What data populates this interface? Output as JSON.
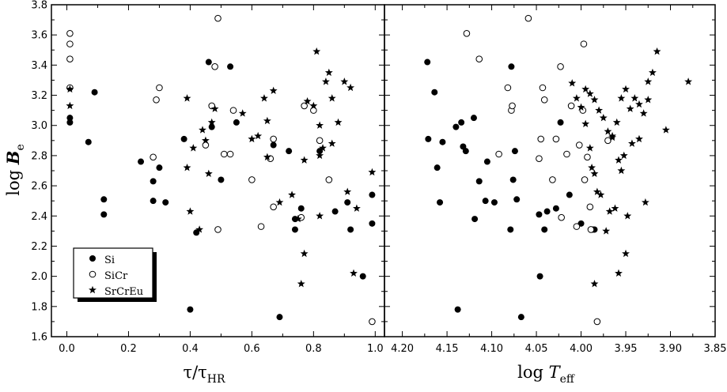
{
  "chart_data": [
    {
      "type": "scatter",
      "xlabel": "τ/τ",
      "xlabel_sub": "HR",
      "ylabel": "log ",
      "ylabel_italic": "B",
      "ylabel_sub": "e",
      "xlim": [
        -0.05,
        1.03
      ],
      "ylim": [
        1.6,
        3.8
      ],
      "xticks": [
        "0.0",
        "0.2",
        "0.4",
        "0.6",
        "0.8",
        "1.0"
      ],
      "yticks": [
        "1.6",
        "1.8",
        "2.0",
        "2.2",
        "2.4",
        "2.6",
        "2.8",
        "3.0",
        "3.2",
        "3.4",
        "3.6",
        "3.8"
      ],
      "legend": {
        "position": "bottom-left",
        "entries": [
          "Si",
          "SiCr",
          "SrCrEu"
        ]
      },
      "series": [
        {
          "name": "Si",
          "marker": "filled-circle",
          "points": [
            [
              0.01,
              3.02
            ],
            [
              0.01,
              3.05
            ],
            [
              0.07,
              2.89
            ],
            [
              0.09,
              3.22
            ],
            [
              0.12,
              2.51
            ],
            [
              0.12,
              2.41
            ],
            [
              0.24,
              2.76
            ],
            [
              0.28,
              2.63
            ],
            [
              0.28,
              2.5
            ],
            [
              0.3,
              2.72
            ],
            [
              0.32,
              2.49
            ],
            [
              0.38,
              2.91
            ],
            [
              0.4,
              1.78
            ],
            [
              0.42,
              2.29
            ],
            [
              0.46,
              3.42
            ],
            [
              0.47,
              2.99
            ],
            [
              0.5,
              2.64
            ],
            [
              0.53,
              3.39
            ],
            [
              0.55,
              3.02
            ],
            [
              0.67,
              2.87
            ],
            [
              0.69,
              1.73
            ],
            [
              0.72,
              2.83
            ],
            [
              0.74,
              2.38
            ],
            [
              0.74,
              2.31
            ],
            [
              0.76,
              2.45
            ],
            [
              0.82,
              2.83
            ],
            [
              0.87,
              2.43
            ],
            [
              0.91,
              2.49
            ],
            [
              0.92,
              2.31
            ],
            [
              0.96,
              2.0
            ],
            [
              0.99,
              2.35
            ],
            [
              0.99,
              2.54
            ]
          ]
        },
        {
          "name": "SiCr",
          "marker": "open-circle",
          "points": [
            [
              0.01,
              3.61
            ],
            [
              0.01,
              3.54
            ],
            [
              0.01,
              3.44
            ],
            [
              0.01,
              3.25
            ],
            [
              0.28,
              2.79
            ],
            [
              0.29,
              3.17
            ],
            [
              0.3,
              3.25
            ],
            [
              0.45,
              2.87
            ],
            [
              0.47,
              3.13
            ],
            [
              0.48,
              3.39
            ],
            [
              0.49,
              3.71
            ],
            [
              0.49,
              2.31
            ],
            [
              0.51,
              2.81
            ],
            [
              0.53,
              2.81
            ],
            [
              0.54,
              3.1
            ],
            [
              0.6,
              2.64
            ],
            [
              0.63,
              2.33
            ],
            [
              0.66,
              2.78
            ],
            [
              0.67,
              2.46
            ],
            [
              0.67,
              2.91
            ],
            [
              0.76,
              2.39
            ],
            [
              0.77,
              3.13
            ],
            [
              0.8,
              3.1
            ],
            [
              0.82,
              2.9
            ],
            [
              0.85,
              2.64
            ],
            [
              0.99,
              1.7
            ]
          ]
        },
        {
          "name": "SrCrEu",
          "marker": "star",
          "points": [
            [
              0.01,
              3.13
            ],
            [
              0.01,
              3.24
            ],
            [
              0.39,
              3.18
            ],
            [
              0.39,
              2.72
            ],
            [
              0.4,
              2.43
            ],
            [
              0.41,
              2.85
            ],
            [
              0.43,
              2.31
            ],
            [
              0.44,
              2.97
            ],
            [
              0.45,
              2.9
            ],
            [
              0.46,
              2.68
            ],
            [
              0.47,
              3.02
            ],
            [
              0.48,
              3.11
            ],
            [
              0.57,
              3.08
            ],
            [
              0.6,
              2.91
            ],
            [
              0.62,
              2.93
            ],
            [
              0.64,
              3.18
            ],
            [
              0.65,
              3.03
            ],
            [
              0.65,
              2.79
            ],
            [
              0.67,
              3.23
            ],
            [
              0.69,
              2.49
            ],
            [
              0.73,
              2.54
            ],
            [
              0.75,
              2.38
            ],
            [
              0.76,
              1.95
            ],
            [
              0.77,
              2.15
            ],
            [
              0.77,
              2.77
            ],
            [
              0.78,
              3.16
            ],
            [
              0.8,
              3.13
            ],
            [
              0.81,
              3.49
            ],
            [
              0.82,
              3.0
            ],
            [
              0.82,
              2.8
            ],
            [
              0.82,
              2.4
            ],
            [
              0.83,
              2.85
            ],
            [
              0.84,
              3.29
            ],
            [
              0.85,
              3.35
            ],
            [
              0.86,
              2.88
            ],
            [
              0.86,
              3.18
            ],
            [
              0.88,
              3.02
            ],
            [
              0.9,
              3.29
            ],
            [
              0.91,
              2.56
            ],
            [
              0.92,
              3.25
            ],
            [
              0.93,
              2.02
            ],
            [
              0.94,
              2.45
            ],
            [
              0.99,
              2.69
            ]
          ]
        }
      ]
    },
    {
      "type": "scatter",
      "xlabel": "log ",
      "xlabel_italic": "T",
      "xlabel_sub": "eff",
      "xlim": [
        4.22,
        3.85
      ],
      "ylim": [
        1.6,
        3.8
      ],
      "xticks": [
        "4.20",
        "4.15",
        "4.10",
        "4.05",
        "4.00",
        "3.95",
        "3.90",
        "3.85"
      ],
      "series": [
        {
          "name": "Si",
          "marker": "filled-circle",
          "points": [
            [
              4.172,
              3.42
            ],
            [
              4.171,
              2.91
            ],
            [
              4.164,
              3.22
            ],
            [
              4.161,
              2.72
            ],
            [
              4.158,
              2.49
            ],
            [
              4.155,
              2.89
            ],
            [
              4.14,
              2.99
            ],
            [
              4.134,
              3.02
            ],
            [
              4.132,
              2.86
            ],
            [
              4.129,
              2.83
            ],
            [
              4.12,
              3.05
            ],
            [
              4.119,
              2.38
            ],
            [
              4.114,
              2.63
            ],
            [
              4.107,
              2.5
            ],
            [
              4.105,
              2.76
            ],
            [
              4.097,
              2.49
            ],
            [
              4.079,
              2.31
            ],
            [
              4.078,
              3.39
            ],
            [
              4.076,
              2.64
            ],
            [
              4.074,
              2.83
            ],
            [
              4.072,
              2.51
            ],
            [
              4.067,
              1.73
            ],
            [
              4.047,
              2.41
            ],
            [
              4.046,
              2.0
            ],
            [
              4.041,
              2.31
            ],
            [
              4.038,
              2.43
            ],
            [
              4.028,
              2.45
            ],
            [
              4.023,
              3.02
            ],
            [
              4.013,
              2.54
            ],
            [
              4.0,
              2.35
            ],
            [
              3.987,
              2.31
            ],
            [
              3.985,
              2.31
            ],
            [
              4.138,
              1.78
            ]
          ]
        },
        {
          "name": "SiCr",
          "marker": "open-circle",
          "points": [
            [
              4.128,
              3.61
            ],
            [
              4.114,
              3.44
            ],
            [
              4.092,
              2.81
            ],
            [
              4.082,
              3.25
            ],
            [
              4.078,
              3.1
            ],
            [
              4.077,
              3.13
            ],
            [
              4.059,
              3.71
            ],
            [
              4.047,
              2.78
            ],
            [
              4.045,
              2.91
            ],
            [
              4.043,
              3.25
            ],
            [
              4.041,
              3.17
            ],
            [
              4.032,
              2.64
            ],
            [
              4.028,
              2.91
            ],
            [
              4.023,
              3.39
            ],
            [
              4.022,
              2.39
            ],
            [
              4.016,
              2.81
            ],
            [
              4.011,
              3.13
            ],
            [
              4.005,
              2.33
            ],
            [
              4.002,
              2.87
            ],
            [
              3.998,
              3.1
            ],
            [
              3.997,
              3.54
            ],
            [
              3.996,
              2.64
            ],
            [
              3.993,
              2.79
            ],
            [
              3.99,
              2.46
            ],
            [
              3.989,
              2.31
            ],
            [
              3.982,
              1.7
            ],
            [
              3.97,
              2.9
            ]
          ]
        },
        {
          "name": "SrCrEu",
          "marker": "star",
          "points": [
            [
              3.995,
              3.24
            ],
            [
              3.99,
              3.21
            ],
            [
              3.985,
              3.17
            ],
            [
              3.98,
              3.1
            ],
            [
              3.975,
              3.05
            ],
            [
              3.97,
              2.96
            ],
            [
              3.965,
              2.93
            ],
            [
              3.96,
              3.02
            ],
            [
              3.955,
              3.18
            ],
            [
              3.95,
              3.24
            ],
            [
              3.945,
              3.11
            ],
            [
              3.94,
              3.18
            ],
            [
              3.935,
              3.14
            ],
            [
              3.93,
              3.08
            ],
            [
              3.925,
              3.29
            ],
            [
              3.92,
              3.35
            ],
            [
              3.915,
              3.49
            ],
            [
              3.905,
              2.97
            ],
            [
              3.88,
              3.29
            ],
            [
              4.01,
              3.28
            ],
            [
              4.005,
              3.18
            ],
            [
              4.0,
              3.12
            ],
            [
              3.995,
              3.01
            ],
            [
              3.99,
              2.85
            ],
            [
              3.988,
              2.72
            ],
            [
              3.985,
              2.68
            ],
            [
              3.982,
              2.56
            ],
            [
              3.978,
              2.54
            ],
            [
              3.972,
              2.3
            ],
            [
              3.968,
              2.43
            ],
            [
              3.962,
              2.45
            ],
            [
              3.958,
              2.77
            ],
            [
              3.955,
              2.7
            ],
            [
              3.952,
              2.8
            ],
            [
              3.95,
              2.15
            ],
            [
              3.948,
              2.4
            ],
            [
              3.943,
              2.88
            ],
            [
              3.935,
              2.91
            ],
            [
              3.928,
              2.49
            ],
            [
              3.958,
              2.02
            ],
            [
              3.985,
              1.95
            ],
            [
              3.965,
              2.92
            ],
            [
              3.925,
              3.17
            ]
          ]
        }
      ]
    }
  ]
}
